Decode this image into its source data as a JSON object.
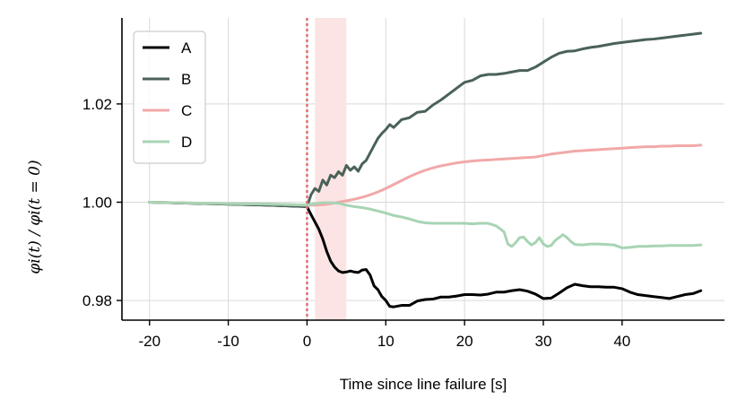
{
  "chart_data": {
    "type": "line",
    "xlabel": "Time since line failure [s]",
    "ylabel": "φi(t) / φi(t = 0)",
    "xlim": [
      -23.5,
      53
    ],
    "ylim": [
      0.976,
      1.0375
    ],
    "xticks": [
      -20,
      -10,
      0,
      10,
      20,
      30,
      40
    ],
    "xtick_labels": [
      "-20",
      "-10",
      "0",
      "10",
      "20",
      "30",
      "40"
    ],
    "yticks": [
      0.98,
      1.0,
      1.02
    ],
    "ytick_labels": [
      "0.98",
      "1.00",
      "1.02"
    ],
    "grid": true,
    "legend_position": "top-left",
    "failure_line": {
      "x": 0,
      "color": "#e07070"
    },
    "shaded_interval": {
      "x0": 1,
      "x1": 5,
      "color": "#fce4e4"
    },
    "series": [
      {
        "name": "A",
        "color": "#000000",
        "x": [
          -20,
          -10,
          -5,
          0,
          0.5,
          1,
          1.5,
          2,
          2.5,
          3,
          3.5,
          4,
          4.5,
          5,
          5.5,
          6,
          6.5,
          7,
          7.5,
          8,
          8.5,
          9,
          9.5,
          10,
          10.5,
          11,
          12,
          13,
          14,
          15,
          16,
          17,
          18,
          19,
          20,
          21,
          22,
          23,
          24,
          25,
          26,
          27,
          28,
          29,
          30,
          31,
          32,
          33,
          34,
          35,
          36,
          37,
          38,
          39,
          40,
          41,
          42,
          43,
          44,
          45,
          46,
          47,
          48,
          49,
          50
        ],
        "values": [
          1.0,
          0.9996,
          0.9994,
          0.9991,
          0.9975,
          0.996,
          0.9945,
          0.9925,
          0.99,
          0.988,
          0.9868,
          0.986,
          0.9857,
          0.9858,
          0.986,
          0.9858,
          0.9857,
          0.9862,
          0.9863,
          0.9852,
          0.983,
          0.9822,
          0.9808,
          0.98,
          0.9788,
          0.9787,
          0.979,
          0.979,
          0.9799,
          0.9802,
          0.9803,
          0.9807,
          0.9807,
          0.9809,
          0.9812,
          0.9812,
          0.9811,
          0.9813,
          0.9817,
          0.9817,
          0.982,
          0.9822,
          0.9819,
          0.9813,
          0.9804,
          0.9805,
          0.9815,
          0.9826,
          0.9833,
          0.983,
          0.9828,
          0.9828,
          0.9827,
          0.9827,
          0.9824,
          0.9817,
          0.9812,
          0.981,
          0.9808,
          0.9806,
          0.9804,
          0.9808,
          0.9812,
          0.9814,
          0.982
        ]
      },
      {
        "name": "B",
        "color": "#4a6258",
        "x": [
          -20,
          -10,
          -5,
          0,
          0.5,
          1,
          1.5,
          2,
          2.5,
          3,
          3.5,
          4,
          4.5,
          5,
          5.5,
          6,
          6.5,
          7,
          7.5,
          8,
          8.5,
          9,
          9.5,
          10,
          10.5,
          11,
          12,
          13,
          14,
          15,
          16,
          17,
          18,
          19,
          20,
          21,
          22,
          23,
          24,
          25,
          26,
          27,
          28,
          29,
          30,
          31,
          32,
          33,
          34,
          35,
          36,
          37,
          38,
          39,
          40,
          41,
          42,
          43,
          44,
          45,
          46,
          47,
          48,
          49,
          50
        ],
        "values": [
          1.0,
          0.9996,
          0.9994,
          0.9991,
          1.0015,
          1.0028,
          1.0022,
          1.0045,
          1.0035,
          1.0055,
          1.005,
          1.0062,
          1.0055,
          1.0075,
          1.0065,
          1.0072,
          1.0063,
          1.0078,
          1.0085,
          1.01,
          1.0115,
          1.013,
          1.014,
          1.0148,
          1.0158,
          1.0152,
          1.0168,
          1.0172,
          1.0183,
          1.0185,
          1.0198,
          1.0208,
          1.022,
          1.0232,
          1.0244,
          1.0248,
          1.0257,
          1.026,
          1.026,
          1.0262,
          1.0265,
          1.0268,
          1.0268,
          1.0275,
          1.0285,
          1.0295,
          1.0303,
          1.0307,
          1.0308,
          1.0312,
          1.0315,
          1.0317,
          1.032,
          1.0323,
          1.0325,
          1.0327,
          1.0329,
          1.0331,
          1.0332,
          1.0334,
          1.0336,
          1.0338,
          1.034,
          1.0342,
          1.0344
        ]
      },
      {
        "name": "C",
        "color": "#f2a8a8",
        "x": [
          -20,
          -10,
          -5,
          0,
          1,
          2,
          3,
          4,
          5,
          6,
          7,
          8,
          9,
          10,
          11,
          12,
          13,
          14,
          15,
          16,
          17,
          18,
          19,
          20,
          21,
          22,
          23,
          24,
          25,
          26,
          27,
          28,
          29,
          30,
          31,
          32,
          33,
          34,
          35,
          36,
          37,
          38,
          39,
          40,
          41,
          42,
          43,
          44,
          45,
          46,
          47,
          48,
          49,
          50
        ],
        "values": [
          1.0,
          0.9997,
          0.9996,
          0.9994,
          0.9994,
          0.9995,
          0.9997,
          1.0,
          1.0003,
          1.0006,
          1.001,
          1.0015,
          1.0021,
          1.0028,
          1.0036,
          1.0044,
          1.0052,
          1.0059,
          1.0065,
          1.007,
          1.0074,
          1.0077,
          1.008,
          1.0082,
          1.0084,
          1.0085,
          1.0086,
          1.0087,
          1.0088,
          1.0089,
          1.009,
          1.0091,
          1.0092,
          1.0095,
          1.0098,
          1.01,
          1.0102,
          1.0104,
          1.0105,
          1.0106,
          1.0107,
          1.0108,
          1.0109,
          1.011,
          1.0111,
          1.0112,
          1.0113,
          1.0113,
          1.0114,
          1.0114,
          1.0115,
          1.0115,
          1.0115,
          1.0116
        ]
      },
      {
        "name": "D",
        "color": "#a8d4b4",
        "x": [
          -20,
          -10,
          -5,
          0,
          1,
          2,
          3,
          4,
          5,
          6,
          7,
          8,
          9,
          10,
          11,
          12,
          13,
          14,
          15,
          16,
          17,
          18,
          19,
          20,
          21,
          22,
          23,
          24,
          25,
          25.5,
          26,
          26.5,
          27,
          27.5,
          28,
          28.5,
          29,
          29.5,
          30,
          30.5,
          31,
          31.5,
          32,
          32.5,
          33,
          33.5,
          34,
          35,
          36,
          37,
          38,
          39,
          40,
          41,
          42,
          43,
          44,
          45,
          46,
          47,
          48,
          49,
          50
        ],
        "values": [
          1.0,
          0.9997,
          0.9996,
          0.9994,
          0.9997,
          0.9999,
          0.9999,
          0.9998,
          0.9994,
          0.9991,
          0.9989,
          0.9986,
          0.9982,
          0.9978,
          0.9973,
          0.997,
          0.9966,
          0.9961,
          0.9958,
          0.9957,
          0.9957,
          0.9957,
          0.9957,
          0.9957,
          0.9956,
          0.9957,
          0.9957,
          0.9952,
          0.994,
          0.9915,
          0.991,
          0.9918,
          0.9928,
          0.9929,
          0.992,
          0.9913,
          0.9918,
          0.9928,
          0.9915,
          0.991,
          0.9912,
          0.9922,
          0.9928,
          0.9934,
          0.9928,
          0.992,
          0.9914,
          0.9913,
          0.9915,
          0.9915,
          0.9914,
          0.9913,
          0.9907,
          0.9908,
          0.991,
          0.991,
          0.9911,
          0.9911,
          0.9912,
          0.9912,
          0.9912,
          0.9912,
          0.9913
        ]
      }
    ]
  }
}
